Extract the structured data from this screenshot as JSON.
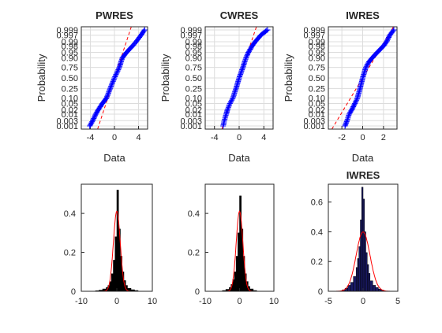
{
  "chart_data": [
    {
      "type": "scatter",
      "subtype": "normal-probability-plot",
      "title": "PWRES",
      "xlabel": "Data",
      "ylabel": "Probability",
      "xlim": [
        -5.5,
        5.5
      ],
      "x_ticks": [
        -4,
        0,
        4
      ],
      "y_ticks": [
        0.001,
        0.003,
        0.01,
        0.02,
        0.05,
        0.1,
        0.25,
        0.5,
        0.75,
        0.9,
        0.95,
        0.98,
        0.99,
        0.997,
        0.999
      ],
      "y_tick_labels": [
        "0.001",
        "0.003",
        "0.01",
        "0.02",
        "0.05",
        "0.10",
        "0.25",
        "0.50",
        "0.75",
        "0.90",
        "0.95",
        "0.98",
        "0.99",
        "0.997",
        "0.999"
      ],
      "grid": true,
      "marker": "+",
      "marker_color": "#0000ff",
      "reference_line_color": "#ff0000",
      "ref_line": {
        "mean": 0.0,
        "sd": 0.85
      },
      "points": [
        [
          -4.1,
          0.001
        ],
        [
          -3.6,
          0.003
        ],
        [
          -3.1,
          0.01
        ],
        [
          -2.7,
          0.02
        ],
        [
          -2.0,
          0.05
        ],
        [
          -1.3,
          0.1
        ],
        [
          -0.7,
          0.25
        ],
        [
          0.0,
          0.5
        ],
        [
          0.8,
          0.75
        ],
        [
          1.1,
          0.85
        ],
        [
          1.3,
          0.9
        ],
        [
          2.0,
          0.95
        ],
        [
          3.0,
          0.98
        ],
        [
          3.6,
          0.99
        ],
        [
          4.4,
          0.997
        ],
        [
          5.0,
          0.999
        ]
      ]
    },
    {
      "type": "scatter",
      "subtype": "normal-probability-plot",
      "title": "CWRES",
      "xlabel": "Data",
      "ylabel": "Probability",
      "xlim": [
        -5.5,
        5.5
      ],
      "x_ticks": [
        -4,
        0,
        4
      ],
      "y_ticks": [
        0.001,
        0.003,
        0.01,
        0.02,
        0.05,
        0.1,
        0.25,
        0.5,
        0.75,
        0.9,
        0.95,
        0.98,
        0.99,
        0.997,
        0.999
      ],
      "y_tick_labels": [
        "0.001",
        "0.003",
        "0.01",
        "0.02",
        "0.05",
        "0.10",
        "0.25",
        "0.50",
        "0.75",
        "0.90",
        "0.95",
        "0.98",
        "0.99",
        "0.997",
        "0.999"
      ],
      "grid": true,
      "marker": "+",
      "marker_color": "#0000ff",
      "reference_line_color": "#ff0000",
      "ref_line": {
        "mean": 0.0,
        "sd": 0.85
      },
      "points": [
        [
          -2.6,
          0.001
        ],
        [
          -2.4,
          0.003
        ],
        [
          -2.1,
          0.01
        ],
        [
          -1.9,
          0.02
        ],
        [
          -1.5,
          0.05
        ],
        [
          -1.0,
          0.1
        ],
        [
          -0.5,
          0.25
        ],
        [
          0.0,
          0.5
        ],
        [
          0.6,
          0.75
        ],
        [
          0.9,
          0.85
        ],
        [
          1.1,
          0.9
        ],
        [
          1.5,
          0.95
        ],
        [
          2.1,
          0.98
        ],
        [
          2.6,
          0.99
        ],
        [
          3.5,
          0.997
        ],
        [
          4.6,
          0.999
        ]
      ]
    },
    {
      "type": "scatter",
      "subtype": "normal-probability-plot",
      "title": "IWRES",
      "xlabel": "Data",
      "ylabel": "Probability",
      "xlim": [
        -3.3,
        3.3
      ],
      "x_ticks": [
        -2,
        0,
        2
      ],
      "y_ticks": [
        0.001,
        0.003,
        0.01,
        0.02,
        0.05,
        0.1,
        0.25,
        0.5,
        0.75,
        0.9,
        0.95,
        0.98,
        0.99,
        0.997,
        0.999
      ],
      "y_tick_labels": [
        "0.001",
        "0.003",
        "0.01",
        "0.02",
        "0.05",
        "0.10",
        "0.25",
        "0.50",
        "0.75",
        "0.90",
        "0.95",
        "0.98",
        "0.99",
        "0.997",
        "0.999"
      ],
      "grid": true,
      "marker": "+",
      "marker_color": "#0000ff",
      "reference_line_color": "#ff0000",
      "ref_line": {
        "mean": 0.0,
        "sd": 0.9
      },
      "points": [
        [
          -1.7,
          0.001
        ],
        [
          -1.5,
          0.003
        ],
        [
          -1.3,
          0.01
        ],
        [
          -1.05,
          0.02
        ],
        [
          -0.75,
          0.05
        ],
        [
          -0.5,
          0.1
        ],
        [
          -0.25,
          0.25
        ],
        [
          0.0,
          0.5
        ],
        [
          0.3,
          0.75
        ],
        [
          0.6,
          0.85
        ],
        [
          0.9,
          0.9
        ],
        [
          1.4,
          0.95
        ],
        [
          2.0,
          0.98
        ],
        [
          2.3,
          0.99
        ],
        [
          2.6,
          0.997
        ],
        [
          3.0,
          0.999
        ]
      ]
    },
    {
      "type": "bar",
      "subtype": "histogram",
      "title": "",
      "xlim": [
        -10,
        10
      ],
      "ylim": [
        0,
        0.55
      ],
      "x_ticks": [
        -10,
        0,
        10
      ],
      "y_ticks": [
        0,
        0.2,
        0.4
      ],
      "bar_color": "#000000",
      "curve_color": "#ff0000",
      "curve": {
        "mean": 0.0,
        "sd": 0.97
      },
      "bin_edges": [
        -6,
        -5,
        -4,
        -3,
        -2.5,
        -2,
        -1.5,
        -1,
        -0.5,
        0,
        0.5,
        1,
        1.5,
        2,
        2.5,
        3,
        4,
        5,
        6
      ],
      "values": [
        0.003,
        0.006,
        0.012,
        0.02,
        0.03,
        0.05,
        0.09,
        0.16,
        0.28,
        0.52,
        0.32,
        0.18,
        0.1,
        0.055,
        0.03,
        0.015,
        0.008,
        0.004
      ]
    },
    {
      "type": "bar",
      "subtype": "histogram",
      "title": "",
      "xlim": [
        -10,
        10
      ],
      "ylim": [
        0,
        0.55
      ],
      "x_ticks": [
        -10,
        0,
        10
      ],
      "y_ticks": [
        0,
        0.2,
        0.4
      ],
      "bar_color": "#000000",
      "curve_color": "#ff0000",
      "curve": {
        "mean": 0.0,
        "sd": 0.97
      },
      "bin_edges": [
        -5,
        -4,
        -3,
        -2.5,
        -2,
        -1.5,
        -1,
        -0.5,
        0,
        0.5,
        1,
        1.5,
        2,
        2.5,
        3,
        4,
        5
      ],
      "values": [
        0.004,
        0.01,
        0.02,
        0.035,
        0.06,
        0.1,
        0.18,
        0.3,
        0.49,
        0.32,
        0.18,
        0.09,
        0.05,
        0.025,
        0.012,
        0.004
      ]
    },
    {
      "type": "bar",
      "subtype": "histogram",
      "title": "IWRES",
      "xlim": [
        -5,
        5
      ],
      "ylim": [
        0,
        0.72
      ],
      "x_ticks": [
        -5,
        0,
        5
      ],
      "y_ticks": [
        0,
        0.2,
        0.4,
        0.6
      ],
      "bar_color": "#1a1a66",
      "curve_color": "#ff0000",
      "curve": {
        "mean": 0.0,
        "sd": 1.0
      },
      "bin_edges": [
        -3,
        -2.6,
        -2.2,
        -1.8,
        -1.4,
        -1.0,
        -0.8,
        -0.6,
        -0.4,
        -0.2,
        0.0,
        0.2,
        0.4,
        0.6,
        0.8,
        1.0,
        1.4,
        1.8,
        2.2,
        2.6,
        3.0
      ],
      "values": [
        0.01,
        0.02,
        0.04,
        0.06,
        0.1,
        0.16,
        0.22,
        0.3,
        0.48,
        0.7,
        0.62,
        0.4,
        0.26,
        0.18,
        0.12,
        0.07,
        0.04,
        0.025,
        0.015,
        0.008
      ]
    }
  ]
}
